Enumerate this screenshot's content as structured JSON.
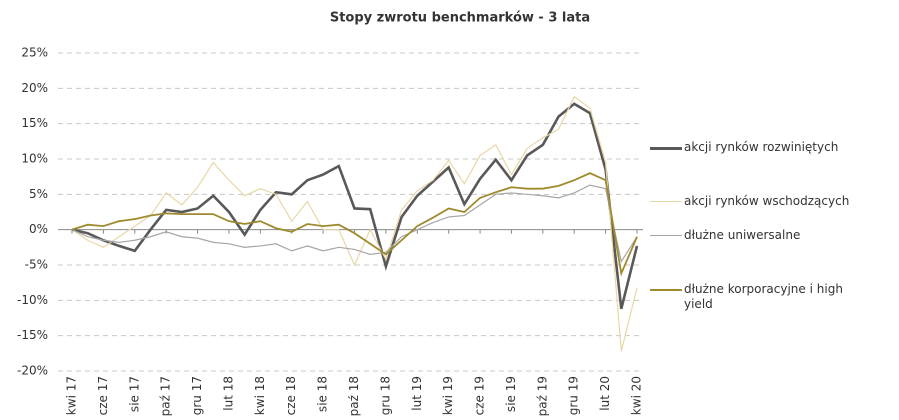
{
  "chart_data": {
    "type": "line",
    "title": "Stopy zwrotu benchmarków - 3 lata",
    "categories": [
      "kwi 17",
      null,
      "cze 17",
      null,
      "sie 17",
      null,
      "paź 17",
      null,
      "gru 17",
      null,
      "lut 18",
      null,
      "kwi 18",
      null,
      "cze 18",
      null,
      "sie 18",
      null,
      "paź 18",
      null,
      "gru 18",
      null,
      "lut 19",
      null,
      "kwi 19",
      null,
      "cze 19",
      null,
      "sie 19",
      null,
      "paź 19",
      null,
      "gru 19",
      null,
      "lut 20",
      null,
      "kwi 20"
    ],
    "series": [
      {
        "name": "akcji rynków rozwiniętych",
        "color": "#595959",
        "values": [
          0,
          -0.5,
          -1.5,
          -2.3,
          -3,
          0,
          2.8,
          2.5,
          3,
          4.8,
          2.5,
          -0.7,
          2.8,
          5.3,
          5,
          7,
          7.8,
          9,
          3,
          2.9,
          -5.2,
          1.8,
          4.8,
          6.8,
          8.8,
          3.6,
          7.2,
          9.9,
          7,
          10.5,
          12,
          16,
          17.8,
          16.5,
          8.5,
          -11.2,
          -2.3
        ]
      },
      {
        "name": "akcji rynków wschodzących",
        "color": "#e8d7a6",
        "values": [
          0,
          -1.5,
          -2.5,
          -1,
          0.5,
          2,
          5.2,
          3.5,
          6,
          9.5,
          7,
          4.8,
          5.8,
          5,
          1.2,
          4,
          0,
          0,
          -5,
          0,
          -4.2,
          2.8,
          5.5,
          7,
          9.8,
          6.5,
          10.5,
          12,
          7.8,
          11.5,
          13,
          14.2,
          18.8,
          17.2,
          9.5,
          -17.2,
          -8.2
        ]
      },
      {
        "name": "dłużne uniwersalne",
        "color": "#a6a6a6",
        "values": [
          0,
          -1,
          -1.5,
          -1.8,
          -1.5,
          -1,
          -0.3,
          -1,
          -1.2,
          -1.8,
          -2,
          -2.5,
          -2.3,
          -2,
          -3,
          -2.3,
          -3,
          -2.5,
          -2.8,
          -3.5,
          -3.2,
          -1,
          0,
          1,
          1.8,
          2,
          3.5,
          5,
          5.2,
          5,
          4.8,
          4.5,
          5.2,
          6.3,
          5.8,
          -4.5,
          -1
        ]
      },
      {
        "name": "dłużne korporacyjne i high yield",
        "color": "#a08a2e",
        "values": [
          0,
          0.7,
          0.5,
          1.2,
          1.5,
          2,
          2.3,
          2.2,
          2.2,
          2.2,
          1.2,
          0.8,
          1.2,
          0.2,
          -0.3,
          0.8,
          0.5,
          0.7,
          -0.5,
          -2,
          -3.5,
          -1.5,
          0.5,
          1.7,
          3,
          2.5,
          4.5,
          5.3,
          6,
          5.8,
          5.8,
          6.2,
          7,
          8,
          7,
          -6.2,
          -1
        ]
      }
    ],
    "ylim": [
      -20,
      25
    ],
    "yticks": [
      {
        "value": -20,
        "label": "-20%"
      },
      {
        "value": -15,
        "label": "-15%"
      },
      {
        "value": -10,
        "label": "-10%"
      },
      {
        "value": -5,
        "label": "-5%"
      },
      {
        "value": 0,
        "label": "0%"
      },
      {
        "value": 5,
        "label": "5%"
      },
      {
        "value": 10,
        "label": "10%"
      },
      {
        "value": 15,
        "label": "15%"
      },
      {
        "value": 20,
        "label": "20%"
      },
      {
        "value": 25,
        "label": "25%"
      }
    ],
    "grid": true,
    "legend": "right"
  }
}
